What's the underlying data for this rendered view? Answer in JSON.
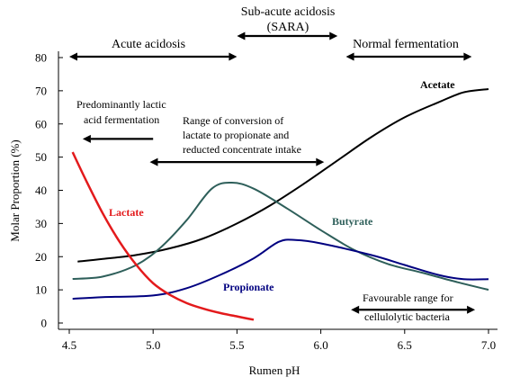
{
  "chart_data": {
    "type": "line",
    "xlabel": "Rumen pH",
    "ylabel": "Molar Proportion (%)",
    "xlim": [
      4.5,
      7.0
    ],
    "ylim": [
      0,
      80
    ],
    "x_ticks": [
      "4.5",
      "5.0",
      "5.5",
      "6.0",
      "6.5",
      "7.0"
    ],
    "y_ticks": [
      "0",
      "10",
      "20",
      "30",
      "40",
      "50",
      "60",
      "70",
      "80"
    ],
    "grid": false,
    "series": [
      {
        "name": "Acetate",
        "color": "#000000",
        "points": [
          [
            4.55,
            18.5
          ],
          [
            4.7,
            19.3
          ],
          [
            4.9,
            20.5
          ],
          [
            5.1,
            22.5
          ],
          [
            5.3,
            25.5
          ],
          [
            5.5,
            30
          ],
          [
            5.7,
            35.5
          ],
          [
            5.9,
            42
          ],
          [
            6.1,
            49
          ],
          [
            6.3,
            56
          ],
          [
            6.5,
            62
          ],
          [
            6.7,
            66.5
          ],
          [
            6.85,
            69.5
          ],
          [
            7.0,
            70.5
          ]
        ]
      },
      {
        "name": "Butyrate",
        "color": "#2e5f5a",
        "points": [
          [
            4.52,
            13.3
          ],
          [
            4.7,
            14
          ],
          [
            4.9,
            17.5
          ],
          [
            5.05,
            23
          ],
          [
            5.2,
            31
          ],
          [
            5.35,
            40.5
          ],
          [
            5.47,
            42.3
          ],
          [
            5.6,
            40.5
          ],
          [
            5.8,
            34.5
          ],
          [
            6.0,
            28
          ],
          [
            6.2,
            22
          ],
          [
            6.4,
            17.8
          ],
          [
            6.6,
            15.2
          ],
          [
            6.8,
            12.5
          ],
          [
            7.0,
            10
          ]
        ]
      },
      {
        "name": "Propionate",
        "color": "#000080",
        "points": [
          [
            4.52,
            7.3
          ],
          [
            4.7,
            7.8
          ],
          [
            5.0,
            8.3
          ],
          [
            5.2,
            10.5
          ],
          [
            5.4,
            14.5
          ],
          [
            5.6,
            19.5
          ],
          [
            5.75,
            24.5
          ],
          [
            5.85,
            25
          ],
          [
            6.0,
            24
          ],
          [
            6.3,
            20.5
          ],
          [
            6.5,
            17.5
          ],
          [
            6.7,
            14.5
          ],
          [
            6.85,
            13.2
          ],
          [
            7.0,
            13.2
          ]
        ]
      },
      {
        "name": "Lactate",
        "color": "#e31a1c",
        "points": [
          [
            4.52,
            51.5
          ],
          [
            4.6,
            43
          ],
          [
            4.7,
            33
          ],
          [
            4.8,
            24.5
          ],
          [
            4.9,
            17.5
          ],
          [
            5.0,
            12
          ],
          [
            5.1,
            8.5
          ],
          [
            5.2,
            6
          ],
          [
            5.3,
            4.3
          ],
          [
            5.4,
            3
          ],
          [
            5.5,
            2
          ],
          [
            5.6,
            1
          ]
        ]
      }
    ],
    "ranges": [
      {
        "label": "Acute acidosis",
        "x": [
          4.5,
          5.5
        ]
      },
      {
        "label": "Sub-acute acidosis",
        "label2": "(SARA)",
        "x": [
          5.5,
          6.1
        ]
      },
      {
        "label": "Normal fermentation",
        "x": [
          6.15,
          6.9
        ]
      }
    ],
    "annotations": {
      "lactic_line1": "Predominantly lactic",
      "lactic_line2": "acid fermentation",
      "conversion_line1": "Range of conversion of",
      "conversion_line2": "lactate to propionate and",
      "conversion_line3": "reducted concentrate intake",
      "cellulolytic_line1": "Favourable range for",
      "cellulolytic_line2": "cellulolytic bacteria"
    },
    "inner_arrows": [
      {
        "name": "lactic-arrow",
        "x": [
          4.58,
          5.0
        ],
        "y": 55.5,
        "heads": "left"
      },
      {
        "name": "conversion-arrow",
        "x": [
          4.98,
          6.02
        ],
        "y": 48.5,
        "heads": "both"
      },
      {
        "name": "cellulolytic-arrow",
        "x": [
          6.18,
          6.92
        ],
        "y": 4,
        "heads": "both"
      }
    ]
  }
}
